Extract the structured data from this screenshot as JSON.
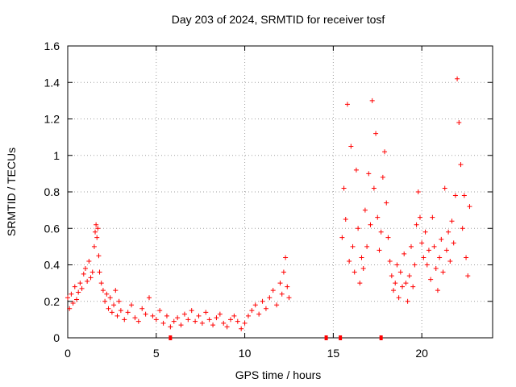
{
  "chart_data": {
    "type": "scatter",
    "title": "Day 203 of 2024, SRMTID for receiver tosf",
    "xlabel": "GPS time / hours",
    "ylabel": "SRMTID / TECUs",
    "xlim": [
      0,
      24
    ],
    "ylim": [
      0,
      1.6
    ],
    "x_ticks": [
      0,
      5,
      10,
      15,
      20
    ],
    "y_ticks": [
      0,
      0.2,
      0.4,
      0.6,
      0.8,
      1,
      1.2,
      1.4,
      1.6
    ],
    "x_tick_labels": [
      "0",
      "5",
      "10",
      "15",
      "20"
    ],
    "y_tick_labels": [
      "0",
      "0.2",
      "0.4",
      "0.6",
      "0.8",
      "1",
      "1.2",
      "1.4",
      "1.6"
    ],
    "grid": true,
    "marker": "+",
    "color": "#ff0000",
    "series": [
      {
        "name": "SRMTID",
        "x": [
          0.0,
          0.1,
          0.2,
          0.3,
          0.4,
          0.5,
          0.6,
          0.7,
          0.8,
          0.9,
          1.0,
          1.1,
          1.2,
          1.3,
          1.4,
          1.5,
          1.55,
          1.6,
          1.65,
          1.7,
          1.75,
          1.8,
          1.9,
          2.0,
          2.1,
          2.2,
          2.3,
          2.4,
          2.5,
          2.6,
          2.7,
          2.8,
          2.9,
          3.0,
          3.2,
          3.4,
          3.6,
          3.8,
          4.0,
          4.2,
          4.4,
          4.6,
          4.8,
          5.0,
          5.2,
          5.4,
          5.6,
          5.8,
          6.0,
          6.2,
          6.4,
          6.6,
          6.8,
          7.0,
          7.2,
          7.4,
          7.6,
          7.8,
          8.0,
          8.2,
          8.4,
          8.6,
          8.8,
          9.0,
          9.2,
          9.4,
          9.6,
          9.8,
          10.0,
          10.2,
          10.4,
          10.6,
          10.8,
          11.0,
          11.2,
          11.4,
          11.6,
          11.8,
          12.0,
          12.1,
          12.2,
          12.3,
          12.4,
          12.5,
          14.6,
          15.4,
          15.5,
          15.6,
          15.7,
          15.8,
          15.9,
          16.0,
          16.1,
          16.2,
          16.3,
          16.4,
          16.5,
          16.6,
          16.7,
          16.8,
          16.9,
          17.0,
          17.1,
          17.2,
          17.3,
          17.4,
          17.5,
          17.6,
          17.7,
          17.8,
          17.9,
          18.0,
          18.1,
          18.2,
          18.3,
          18.4,
          18.5,
          18.6,
          18.7,
          18.8,
          18.9,
          19.0,
          19.1,
          19.2,
          19.3,
          19.4,
          19.5,
          19.6,
          19.7,
          19.8,
          19.9,
          20.0,
          20.1,
          20.2,
          20.3,
          20.4,
          20.5,
          20.6,
          20.7,
          20.8,
          20.9,
          21.0,
          21.1,
          21.2,
          21.3,
          21.4,
          21.5,
          21.6,
          21.7,
          21.8,
          21.9,
          22.0,
          22.1,
          22.2,
          22.3,
          22.4,
          22.5,
          22.6,
          22.7
        ],
        "y": [
          0.22,
          0.16,
          0.24,
          0.19,
          0.28,
          0.21,
          0.25,
          0.3,
          0.27,
          0.35,
          0.38,
          0.31,
          0.42,
          0.33,
          0.36,
          0.5,
          0.58,
          0.62,
          0.55,
          0.6,
          0.45,
          0.36,
          0.3,
          0.26,
          0.2,
          0.24,
          0.16,
          0.22,
          0.14,
          0.18,
          0.26,
          0.12,
          0.2,
          0.15,
          0.1,
          0.14,
          0.18,
          0.11,
          0.09,
          0.16,
          0.13,
          0.22,
          0.12,
          0.1,
          0.15,
          0.08,
          0.12,
          0.06,
          0.09,
          0.11,
          0.07,
          0.13,
          0.1,
          0.15,
          0.09,
          0.12,
          0.08,
          0.14,
          0.1,
          0.07,
          0.11,
          0.13,
          0.08,
          0.06,
          0.1,
          0.12,
          0.09,
          0.05,
          0.08,
          0.12,
          0.15,
          0.18,
          0.13,
          0.2,
          0.16,
          0.22,
          0.26,
          0.18,
          0.3,
          0.24,
          0.36,
          0.44,
          0.28,
          0.22,
          0.0,
          0.0,
          0.55,
          0.82,
          0.65,
          1.28,
          0.42,
          1.05,
          0.5,
          0.36,
          0.92,
          0.6,
          0.3,
          0.44,
          0.38,
          0.7,
          0.5,
          0.9,
          0.62,
          1.3,
          0.82,
          1.12,
          0.66,
          0.48,
          0.58,
          0.88,
          1.02,
          0.74,
          0.55,
          0.42,
          0.34,
          0.26,
          0.3,
          0.4,
          0.22,
          0.36,
          0.28,
          0.46,
          0.3,
          0.2,
          0.34,
          0.5,
          0.28,
          0.4,
          0.62,
          0.8,
          0.66,
          0.52,
          0.44,
          0.58,
          0.4,
          0.48,
          0.32,
          0.66,
          0.5,
          0.38,
          0.26,
          0.44,
          0.54,
          0.36,
          0.82,
          0.48,
          0.58,
          0.42,
          0.64,
          0.52,
          0.78,
          1.42,
          1.18,
          0.95,
          0.6,
          0.78,
          0.44,
          0.34,
          0.72
        ]
      }
    ],
    "gap_markers_x": [
      5.8,
      14.6,
      15.4,
      17.7
    ]
  }
}
